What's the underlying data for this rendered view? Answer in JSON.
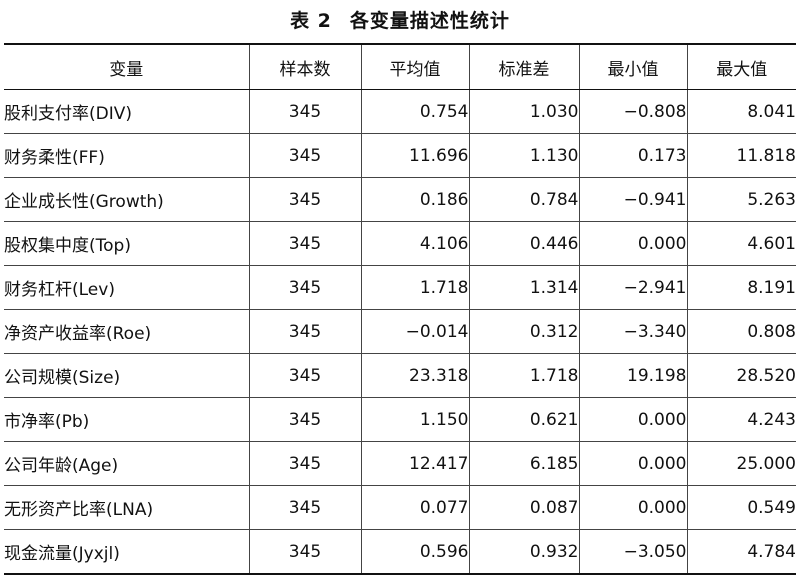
{
  "caption": {
    "number": "表 2",
    "title": "各变量描述性统计"
  },
  "columns": [
    "变量",
    "样本数",
    "平均值",
    "标准差",
    "最小值",
    "最大值"
  ],
  "rows": [
    {
      "name": "股利支付率(DIV)",
      "n": "345",
      "mean": "0.754",
      "sd": "1.030",
      "min": "−0.808",
      "max": "8.041"
    },
    {
      "name": "财务柔性(FF)",
      "n": "345",
      "mean": "11.696",
      "sd": "1.130",
      "min": "0.173",
      "max": "11.818"
    },
    {
      "name": "企业成长性(Growth)",
      "n": "345",
      "mean": "0.186",
      "sd": "0.784",
      "min": "−0.941",
      "max": "5.263"
    },
    {
      "name": "股权集中度(Top)",
      "n": "345",
      "mean": "4.106",
      "sd": "0.446",
      "min": "0.000",
      "max": "4.601"
    },
    {
      "name": "财务杠杆(Lev)",
      "n": "345",
      "mean": "1.718",
      "sd": "1.314",
      "min": "−2.941",
      "max": "8.191"
    },
    {
      "name": "净资产收益率(Roe)",
      "n": "345",
      "mean": "−0.014",
      "sd": "0.312",
      "min": "−3.340",
      "max": "0.808"
    },
    {
      "name": "公司规模(Size)",
      "n": "345",
      "mean": "23.318",
      "sd": "1.718",
      "min": "19.198",
      "max": "28.520"
    },
    {
      "name": "市净率(Pb)",
      "n": "345",
      "mean": "1.150",
      "sd": "0.621",
      "min": "0.000",
      "max": "4.243"
    },
    {
      "name": "公司年龄(Age)",
      "n": "345",
      "mean": "12.417",
      "sd": "6.185",
      "min": "0.000",
      "max": "25.000"
    },
    {
      "name": "无形资产比率(LNA)",
      "n": "345",
      "mean": "0.077",
      "sd": "0.087",
      "min": "0.000",
      "max": "0.549"
    },
    {
      "name": "现金流量(Jyxjl)",
      "n": "345",
      "mean": "0.596",
      "sd": "0.932",
      "min": "−3.050",
      "max": "4.784"
    }
  ]
}
